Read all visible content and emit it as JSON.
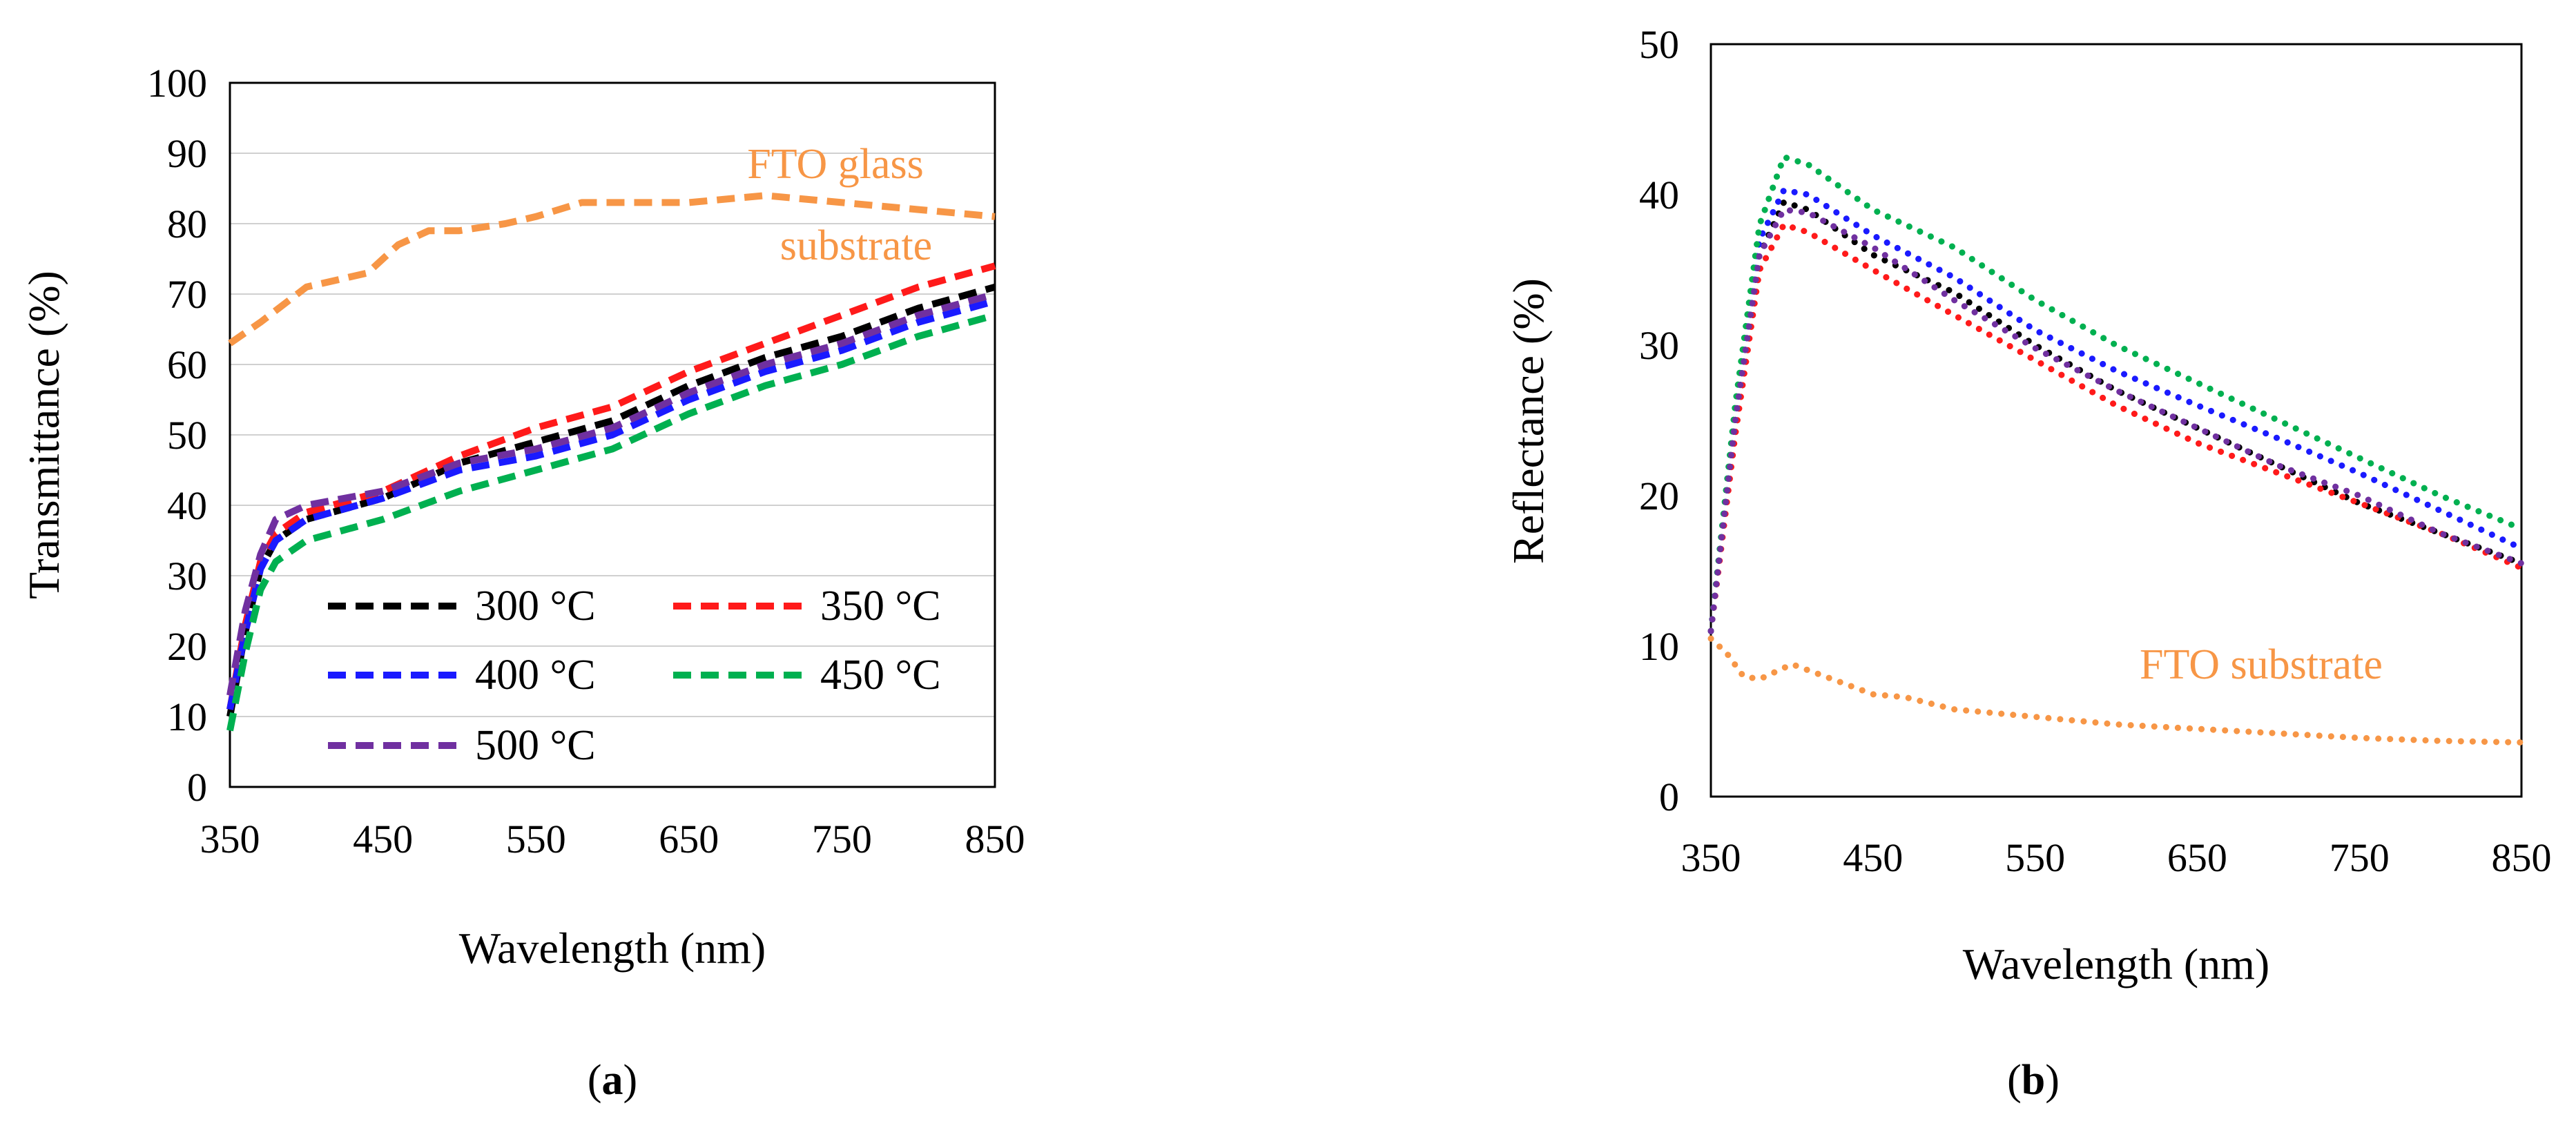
{
  "colors": {
    "300": "#000000",
    "350": "#ff1a1a",
    "400": "#1a1aff",
    "450": "#00b050",
    "500": "#7030a0",
    "fto": "#f79646"
  },
  "chart_data": [
    {
      "panel": "(a)",
      "panel_letter": "a",
      "type": "line",
      "line_style": "dashed",
      "xlabel": "Wavelength (nm)",
      "ylabel": "Transmittance (%)",
      "xlim": [
        350,
        850
      ],
      "ylim": [
        0,
        100
      ],
      "xticks": [
        350,
        450,
        550,
        650,
        750,
        850
      ],
      "yticks": [
        0,
        10,
        20,
        30,
        40,
        50,
        60,
        70,
        80,
        90,
        100
      ],
      "legend_position": "lower-right",
      "annotation": {
        "lines": [
          "FTO glass",
          "substrate"
        ],
        "series": "FTO"
      },
      "series": [
        {
          "name": "300 °C",
          "key": "300",
          "in_legend": true,
          "x": [
            350,
            360,
            370,
            380,
            400,
            450,
            500,
            550,
            600,
            650,
            700,
            750,
            800,
            850
          ],
          "y": [
            10,
            22,
            31,
            35,
            38,
            41,
            46,
            49,
            52,
            57,
            61,
            64,
            68,
            71
          ]
        },
        {
          "name": "350 °C",
          "key": "350",
          "in_legend": true,
          "x": [
            350,
            360,
            370,
            380,
            400,
            450,
            500,
            550,
            600,
            650,
            700,
            750,
            800,
            850
          ],
          "y": [
            11,
            23,
            32,
            36,
            39,
            42,
            47,
            51,
            54,
            59,
            63,
            67,
            71,
            74
          ]
        },
        {
          "name": "400 °C",
          "key": "400",
          "in_legend": true,
          "x": [
            350,
            360,
            370,
            380,
            400,
            450,
            500,
            550,
            600,
            650,
            700,
            750,
            800,
            850
          ],
          "y": [
            11,
            22,
            31,
            35,
            38,
            41,
            45,
            47,
            50,
            55,
            59,
            62,
            66,
            69
          ]
        },
        {
          "name": "450 °C",
          "key": "450",
          "in_legend": true,
          "x": [
            350,
            360,
            370,
            380,
            400,
            450,
            500,
            550,
            600,
            650,
            700,
            750,
            800,
            850
          ],
          "y": [
            8,
            19,
            28,
            32,
            35,
            38,
            42,
            45,
            48,
            53,
            57,
            60,
            64,
            67
          ]
        },
        {
          "name": "500 °C",
          "key": "500",
          "in_legend": true,
          "x": [
            350,
            360,
            370,
            380,
            400,
            450,
            500,
            550,
            600,
            650,
            700,
            750,
            800,
            850
          ],
          "y": [
            13,
            25,
            33,
            38,
            40,
            42,
            46,
            48,
            51,
            56,
            60,
            63,
            67,
            70
          ]
        },
        {
          "name": "FTO glass substrate",
          "key": "fto",
          "in_legend": false,
          "x": [
            350,
            370,
            400,
            440,
            460,
            480,
            500,
            530,
            550,
            580,
            600,
            650,
            700,
            750,
            800,
            850
          ],
          "y": [
            63,
            66,
            71,
            73,
            77,
            79,
            79,
            80,
            81,
            83,
            83,
            83,
            84,
            83,
            82,
            81
          ]
        }
      ]
    },
    {
      "panel": "(b)",
      "panel_letter": "b",
      "type": "line",
      "line_style": "dotted",
      "xlabel": "Wavelength (nm)",
      "ylabel": "Reflectance (%)",
      "xlim": [
        350,
        850
      ],
      "ylim": [
        0,
        50
      ],
      "xticks": [
        350,
        450,
        550,
        650,
        750,
        850
      ],
      "yticks": [
        0,
        10,
        20,
        30,
        40,
        50
      ],
      "annotation": {
        "lines": [
          "FTO substrate"
        ],
        "series": "FTO"
      },
      "series": [
        {
          "name": "300 °C",
          "key": "300",
          "x": [
            350,
            365,
            380,
            395,
            410,
            450,
            500,
            550,
            600,
            650,
            700,
            750,
            800,
            850
          ],
          "y": [
            11,
            25,
            36,
            39.5,
            39,
            36,
            33.5,
            30,
            27,
            24.5,
            22,
            19.5,
            17.5,
            15.5
          ]
        },
        {
          "name": "350 °C",
          "key": "350",
          "x": [
            350,
            365,
            380,
            395,
            410,
            450,
            500,
            550,
            600,
            650,
            700,
            750,
            800,
            850
          ],
          "y": [
            11,
            24,
            35,
            38,
            37.5,
            35,
            32,
            29,
            26,
            23.5,
            21.5,
            19.5,
            17.5,
            15.2
          ]
        },
        {
          "name": "400 °C",
          "key": "400",
          "x": [
            350,
            365,
            380,
            395,
            410,
            450,
            500,
            550,
            600,
            650,
            700,
            750,
            800,
            850
          ],
          "y": [
            11,
            25,
            37,
            40.3,
            40,
            37.3,
            34.5,
            31,
            28.3,
            26,
            23.8,
            21.5,
            19,
            16.5
          ]
        },
        {
          "name": "450 °C",
          "key": "450",
          "x": [
            350,
            365,
            380,
            395,
            410,
            450,
            500,
            550,
            600,
            650,
            700,
            750,
            800,
            850
          ],
          "y": [
            11,
            26,
            38,
            42.5,
            42,
            39,
            36.5,
            33,
            30,
            27.5,
            25,
            22.5,
            20,
            17.8
          ]
        },
        {
          "name": "500 °C",
          "key": "500",
          "x": [
            350,
            365,
            380,
            395,
            410,
            450,
            500,
            550,
            600,
            650,
            700,
            750,
            800,
            850
          ],
          "y": [
            11,
            25,
            36,
            39,
            38.8,
            36.5,
            33,
            29.8,
            27,
            24.5,
            22,
            20,
            17.5,
            15.5
          ]
        },
        {
          "name": "FTO substrate",
          "key": "fto",
          "x": [
            350,
            360,
            370,
            380,
            390,
            400,
            420,
            450,
            470,
            500,
            550,
            600,
            650,
            700,
            750,
            800,
            850
          ],
          "y": [
            10.5,
            9.5,
            8,
            7.8,
            8.3,
            8.8,
            8,
            6.8,
            6.6,
            5.8,
            5.3,
            4.8,
            4.5,
            4.2,
            3.9,
            3.7,
            3.6
          ]
        }
      ]
    }
  ]
}
